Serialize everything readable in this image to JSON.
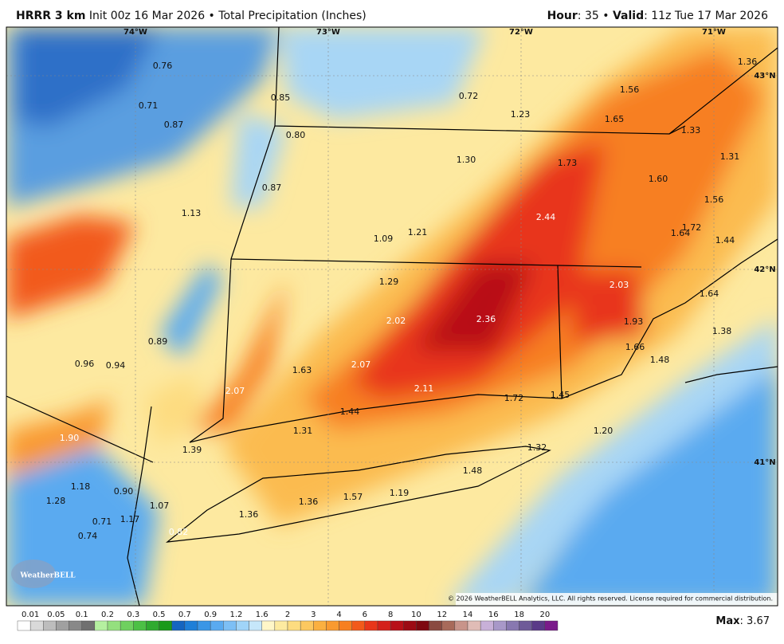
{
  "header": {
    "model": "HRRR 3 km",
    "init": "Init 00z 16 Mar 2026 • Total Precipitation (Inches)",
    "hour_label": "Hour",
    "hour": ": 35 •",
    "valid_label": "Valid",
    "valid": ": 11z Tue 17 Mar 2026"
  },
  "coordinates": [
    "74°W",
    "73°W",
    "72°W",
    "71°W",
    "43°N",
    "42°N",
    "41°N"
  ],
  "values": [
    "0.76",
    "0.71",
    "0.87",
    "0.85",
    "0.80",
    "0.87",
    "1.13",
    "0.72",
    "1.23",
    "1.56",
    "1.65",
    "1.36",
    "1.33",
    "1.31",
    "1.30",
    "1.73",
    "1.60",
    "1.56",
    "2.44",
    "1.72",
    "1.64",
    "1.44",
    "1.09",
    "1.21",
    "1.29",
    "2.03",
    "1.64",
    "2.02",
    "2.36",
    "1.93",
    "1.38",
    "1.66",
    "1.48",
    "0.89",
    "0.96",
    "0.94",
    "1.63",
    "2.07",
    "2.07",
    "2.11",
    "1.72",
    "1.45",
    "1.44",
    "1.31",
    "1.20",
    "1.90",
    "1.39",
    "1.32",
    "1.48",
    "1.18",
    "0.90",
    "1.28",
    "1.57",
    "1.19",
    "1.36",
    "1.07",
    "1.36",
    "0.71",
    "1.17",
    "0.82",
    "0.74"
  ],
  "logo": "WeatherBELL",
  "copyright": "© 2026 WeatherBELL Analytics, LLC. All rights reserved. License required for commercial distribution.",
  "legend": {
    "labels": [
      "0.01",
      "0.05",
      "0.1",
      "0.2",
      "0.3",
      "0.5",
      "0.7",
      "0.9",
      "1.2",
      "1.6",
      "2",
      "3",
      "4",
      "6",
      "8",
      "10",
      "12",
      "14",
      "16",
      "18",
      "20"
    ],
    "colors": [
      "#ffffff",
      "#d9d9d9",
      "#bdbdbd",
      "#a0a0a0",
      "#888888",
      "#707070",
      "#b5f0a0",
      "#94e07e",
      "#6fd05f",
      "#4cc045",
      "#2faa2f",
      "#1a9a1a",
      "#1565c0",
      "#1e7fd8",
      "#3a96e6",
      "#5aaaf0",
      "#7dbff5",
      "#a0d4f8",
      "#c6e7fa",
      "#fff6c8",
      "#fdeaa0",
      "#fddc80",
      "#fcc860",
      "#fbb040",
      "#f99a30",
      "#f77f20",
      "#f25a1a",
      "#e8361a",
      "#d4201a",
      "#b81018",
      "#9c0a14",
      "#7e0810",
      "#8a4a40",
      "#a86a5a",
      "#c8948a",
      "#e0bcb6",
      "#c8b0d8",
      "#a898c8",
      "#8878b0",
      "#6e5a98",
      "#5a3a88",
      "#7a1a8a"
    ]
  },
  "max": {
    "label": "Max",
    "value": ": 3.67"
  }
}
